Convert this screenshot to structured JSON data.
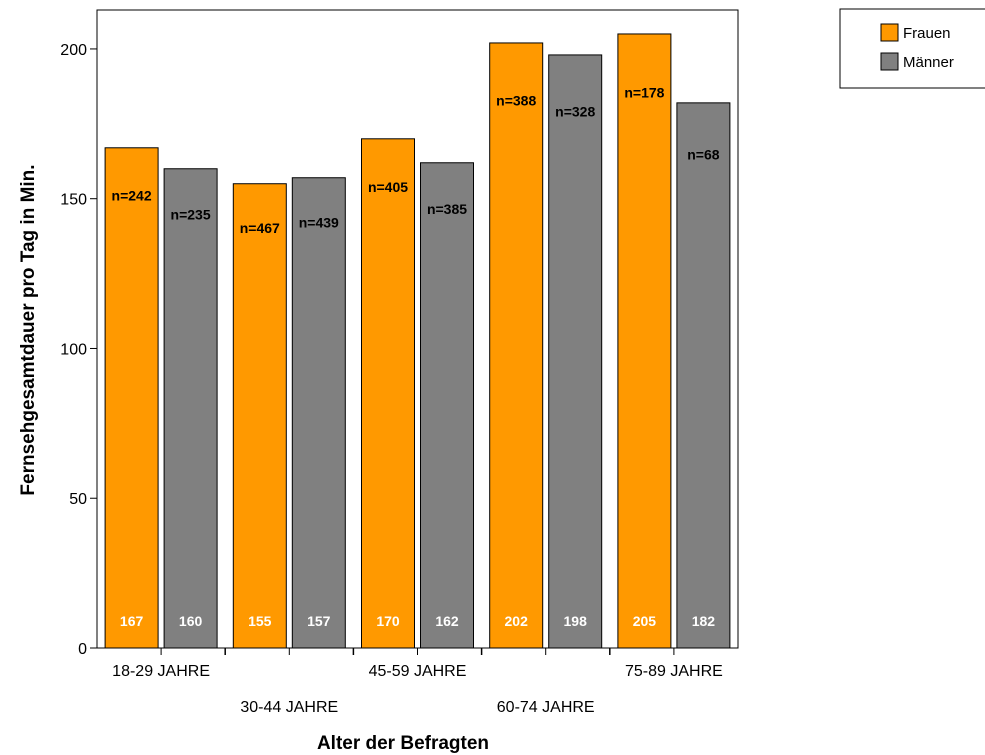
{
  "chart_data": {
    "type": "bar",
    "xlabel": "Alter der Befragten",
    "ylabel": "Fernsehgesamtdauer pro Tag in Min.",
    "ylim": [
      0,
      213
    ],
    "yticks": [
      0,
      50,
      100,
      150,
      200
    ],
    "grid": false,
    "legend_position": "top-right",
    "categories": [
      "18-29 JAHRE",
      "30-44 JAHRE",
      "45-59 JAHRE",
      "60-74 JAHRE",
      "75-89 JAHRE"
    ],
    "series": [
      {
        "name": "Frauen",
        "color": "#ff9900",
        "values": [
          167,
          155,
          170,
          202,
          205
        ],
        "value_labels": [
          "167",
          "155",
          "170",
          "202",
          "205"
        ],
        "n_labels": [
          "n=242",
          "n=467",
          "n=405",
          "n=388",
          "n=178"
        ]
      },
      {
        "name": "Männer",
        "color": "#808080",
        "values": [
          160,
          157,
          162,
          198,
          182
        ],
        "value_labels": [
          "160",
          "157",
          "162",
          "198",
          "182"
        ],
        "n_labels": [
          "n=235",
          "n=439",
          "n=385",
          "n=328",
          "n=68"
        ]
      }
    ]
  }
}
